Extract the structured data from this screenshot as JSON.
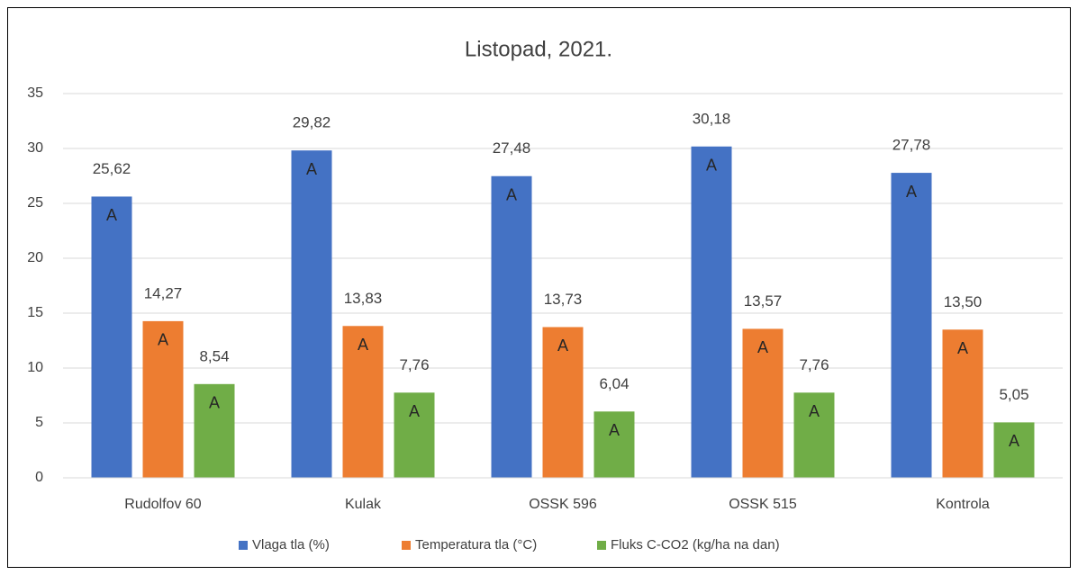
{
  "chart_data": {
    "type": "bar",
    "title": "Listopad, 2021.",
    "categories": [
      "Rudolfov 60",
      "Kulak",
      "OSSK 596",
      "OSSK 515",
      "Kontrola"
    ],
    "series": [
      {
        "name": "Vlaga tla (%)",
        "color": "#4472c4",
        "values": [
          25.62,
          29.82,
          27.48,
          30.18,
          27.78
        ],
        "value_labels": [
          "25,62",
          "29,82",
          "27,48",
          "30,18",
          "27,78"
        ],
        "letters": [
          "A",
          "A",
          "A",
          "A",
          "A"
        ]
      },
      {
        "name": "Temperatura tla (°C)",
        "color": "#ed7d31",
        "values": [
          14.27,
          13.83,
          13.73,
          13.57,
          13.5
        ],
        "value_labels": [
          "14,27",
          "13,83",
          "13,73",
          "13,57",
          "13,50"
        ],
        "letters": [
          "A",
          "A",
          "A",
          "A",
          "A"
        ]
      },
      {
        "name": "Fluks C-CO2 (kg/ha na dan)",
        "color": "#70ad47",
        "values": [
          8.54,
          7.76,
          6.04,
          7.76,
          5.05
        ],
        "value_labels": [
          "8,54",
          "7,76",
          "6,04",
          "7,76",
          "5,05"
        ],
        "letters": [
          "A",
          "A",
          "A",
          "A",
          "A"
        ]
      }
    ],
    "ylim": [
      0,
      35
    ],
    "yticks": [
      0,
      5,
      10,
      15,
      20,
      25,
      30,
      35
    ],
    "grid": true,
    "legend": "bottom"
  }
}
